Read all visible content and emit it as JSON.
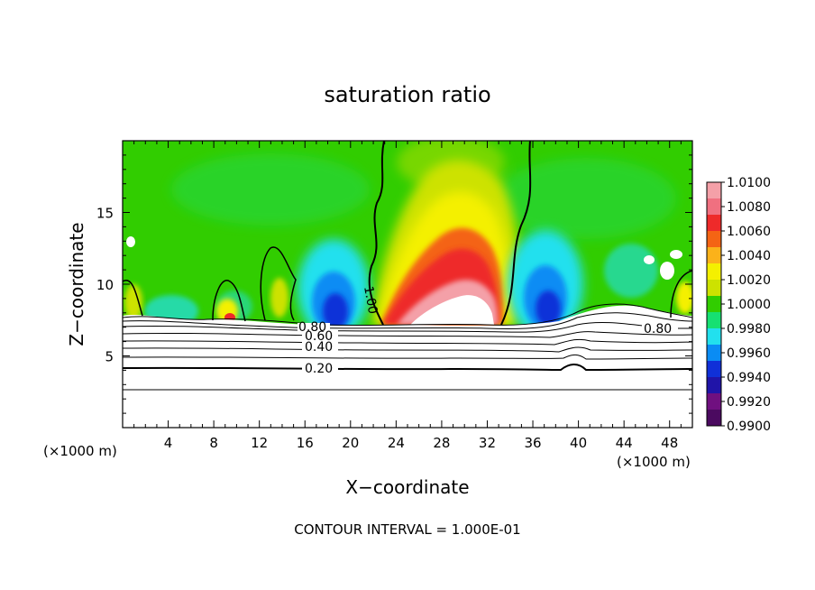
{
  "chart_data": {
    "type": "heatmap",
    "title": "saturation ratio",
    "xlabel": "X−coordinate",
    "ylabel": "Z−coordinate",
    "x_unit_left": "(×1000 m)",
    "x_unit_right": "(×1000 m)",
    "xlim": [
      0,
      50
    ],
    "ylim": [
      0,
      20
    ],
    "x_ticks": [
      4,
      8,
      12,
      16,
      20,
      24,
      28,
      32,
      36,
      40,
      44,
      48
    ],
    "x_tick_labels": [
      "4",
      "8",
      "12",
      "16",
      "20",
      "24",
      "28",
      "32",
      "36",
      "40",
      "44",
      "48"
    ],
    "y_ticks": [
      5,
      10,
      15
    ],
    "y_tick_labels": [
      "5",
      "10",
      "15"
    ],
    "colorbar": {
      "labels": [
        "1.0100",
        "1.0080",
        "1.0060",
        "1.0040",
        "1.0020",
        "1.0000",
        "0.9980",
        "0.9960",
        "0.9940",
        "0.9920",
        "0.9900"
      ],
      "colors": [
        "#f4a0a8",
        "#f07080",
        "#ee2a2a",
        "#f46414",
        "#fbb21a",
        "#f4f000",
        "#cde200",
        "#31cd00",
        "#16e072",
        "#22e0ee",
        "#0a8cf4",
        "#1030d8",
        "#2014a8",
        "#701080",
        "#4b0a60"
      ]
    },
    "contour_labels": [
      {
        "text": "1.00",
        "x": 21.5,
        "z": 9.0,
        "rotate": 80
      },
      {
        "text": "0.80",
        "x": 17.5,
        "z": 6.8,
        "rotate": 0
      },
      {
        "text": "0.60",
        "x": 17.7,
        "z": 6.3,
        "rotate": 0
      },
      {
        "text": "0.40",
        "x": 17.7,
        "z": 5.5,
        "rotate": 0
      },
      {
        "text": "0.20",
        "x": 17.7,
        "z": 4.1,
        "rotate": 0
      },
      {
        "text": "0.80",
        "x": 47.0,
        "z": 6.7,
        "rotate": 0
      }
    ],
    "contour_interval_text": "CONTOUR INTERVAL =  1.000E-01"
  }
}
